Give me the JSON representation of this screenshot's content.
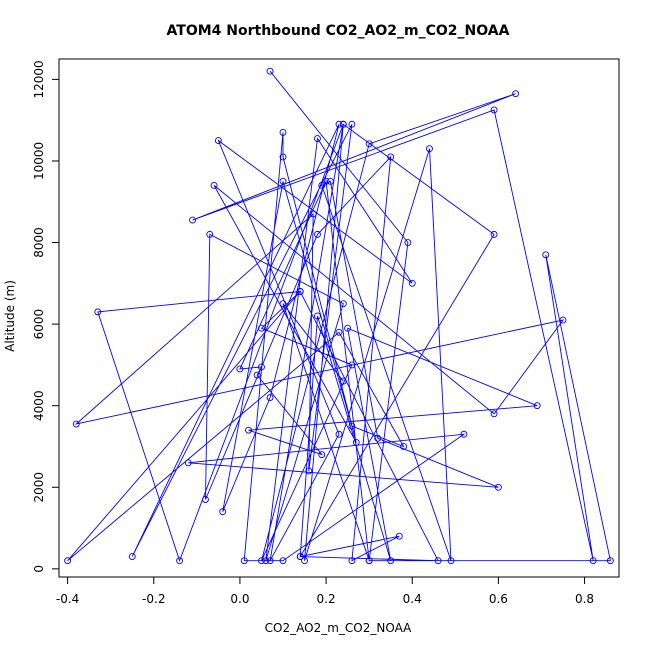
{
  "chart_data": {
    "type": "line",
    "title": "ATOM4 Northbound CO2_AO2_m_CO2_NOAA",
    "xlabel": "CO2_AO2_m_CO2_NOAA",
    "ylabel": "Altitude (m)",
    "xlim": [
      -0.42,
      0.88
    ],
    "ylim": [
      -200,
      12500
    ],
    "xticks": [
      -0.4,
      -0.2,
      0.0,
      0.2,
      0.4,
      0.6,
      0.8
    ],
    "xtick_labels": [
      "-0.4",
      "-0.2",
      "0.0",
      "0.2",
      "0.4",
      "0.6",
      "0.8"
    ],
    "yticks": [
      0,
      2000,
      4000,
      6000,
      8000,
      10000,
      12000
    ],
    "ytick_labels": [
      "0",
      "2000",
      "4000",
      "6000",
      "8000",
      "10000",
      "12000"
    ],
    "grid": false,
    "series": [
      {
        "color": "#0000ff",
        "marker": "open-circle",
        "points": [
          [
            0.07,
            12200
          ],
          [
            0.39,
            8000
          ],
          [
            0.3,
            200
          ],
          [
            0.86,
            200
          ],
          [
            0.71,
            7700
          ],
          [
            0.82,
            200
          ],
          [
            0.59,
            11250
          ],
          [
            -0.11,
            8550
          ],
          [
            0.64,
            11650
          ],
          [
            0.3,
            10420
          ],
          [
            0.05,
            200
          ],
          [
            0.26,
            5000
          ],
          [
            0.05,
            5900
          ],
          [
            0.14,
            6800
          ],
          [
            -0.33,
            6300
          ],
          [
            -0.14,
            200
          ],
          [
            0.24,
            10900
          ],
          [
            0.07,
            200
          ],
          [
            0.23,
            3300
          ],
          [
            -0.05,
            10500
          ],
          [
            0.4,
            7000
          ],
          [
            0.18,
            10550
          ],
          [
            0.06,
            200
          ],
          [
            0.24,
            6500
          ],
          [
            -0.07,
            8200
          ],
          [
            -0.08,
            1700
          ],
          [
            0.18,
            8200
          ],
          [
            0.35,
            10100
          ],
          [
            0.26,
            200
          ],
          [
            0.37,
            800
          ],
          [
            0.14,
            300
          ],
          [
            0.59,
            8200
          ],
          [
            0.24,
            10900
          ],
          [
            0.15,
            200
          ],
          [
            0.44,
            10300
          ],
          [
            0.49,
            200
          ],
          [
            0.19,
            9400
          ],
          [
            0.21,
            9500
          ],
          [
            0.32,
            3200
          ],
          [
            0.6,
            2000
          ],
          [
            -0.12,
            2600
          ],
          [
            0.52,
            3300
          ],
          [
            0.1,
            200
          ],
          [
            0.01,
            200
          ],
          [
            0.1,
            10700
          ],
          [
            0.1,
            10100
          ],
          [
            0.27,
            3100
          ],
          [
            -0.06,
            9400
          ],
          [
            0.59,
            3800
          ],
          [
            0.75,
            6100
          ],
          [
            -0.38,
            3550
          ],
          [
            0.17,
            8700
          ],
          [
            0.16,
            2400
          ],
          [
            0.26,
            10900
          ],
          [
            -0.25,
            300
          ],
          [
            0.23,
            10900
          ],
          [
            0.07,
            4200
          ],
          [
            -0.04,
            1400
          ],
          [
            0.1,
            9500
          ],
          [
            0.26,
            3500
          ],
          [
            0.38,
            3000
          ],
          [
            0.23,
            5800
          ],
          [
            -0.4,
            200
          ],
          [
            0.14,
            6800
          ],
          [
            0.46,
            200
          ],
          [
            0.14,
            300
          ],
          [
            0.18,
            6200
          ],
          [
            0.35,
            200
          ],
          [
            0.25,
            5900
          ],
          [
            0.69,
            4000
          ],
          [
            0.02,
            3400
          ],
          [
            0.19,
            2800
          ],
          [
            0.04,
            4750
          ],
          [
            0.05,
            4950
          ],
          [
            0.0,
            4900
          ],
          [
            0.2,
            9500
          ],
          [
            0.3,
            200
          ],
          [
            0.1,
            6500
          ],
          [
            0.24,
            4600
          ]
        ]
      }
    ]
  }
}
